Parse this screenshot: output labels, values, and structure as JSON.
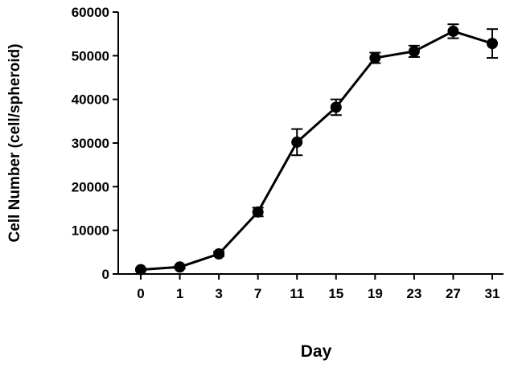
{
  "chart_data": {
    "type": "line",
    "title": "",
    "xlabel": "Day",
    "ylabel": "Cell Number (cell/spheroid)",
    "categories": [
      "0",
      "1",
      "3",
      "7",
      "11",
      "15",
      "19",
      "23",
      "27",
      "31"
    ],
    "y_ticks": [
      "0",
      "10000",
      "20000",
      "30000",
      "40000",
      "50000",
      "60000"
    ],
    "ylim": [
      0,
      60000
    ],
    "grid": false,
    "legend": "none",
    "series": [
      {
        "values": [
          1000,
          1600,
          4600,
          14200,
          30200,
          38200,
          49500,
          51000,
          55600,
          52800
        ],
        "errors": [
          200,
          300,
          500,
          1000,
          3000,
          1800,
          1200,
          1300,
          1600,
          3300
        ]
      }
    ],
    "colors": {
      "line": "#000000",
      "marker": "#000000",
      "axis": "#000000"
    }
  }
}
